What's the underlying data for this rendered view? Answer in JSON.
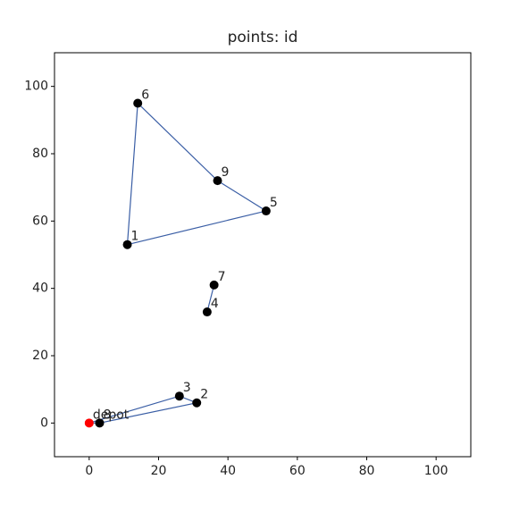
{
  "chart_data": {
    "type": "scatter",
    "title": "points: id",
    "labels": [
      "depot",
      "1",
      "2",
      "3",
      "4",
      "5",
      "6",
      "7",
      "8",
      "9"
    ],
    "x": [
      0,
      11,
      31,
      26,
      34,
      51,
      14,
      36,
      3,
      37
    ],
    "y": [
      0,
      53,
      6,
      8,
      33,
      63,
      95,
      41,
      0,
      72
    ],
    "color": "#000000",
    "depot_color": "#ff0000",
    "route_color": "#3a5ea5",
    "routes": [
      [
        0,
        3,
        2,
        8,
        0
      ],
      [
        4,
        7
      ],
      [
        1,
        6,
        9,
        5,
        1
      ]
    ],
    "xlim": [
      -10,
      110
    ],
    "ylim": [
      -10,
      110
    ],
    "xticks": [
      0,
      20,
      40,
      60,
      80,
      100
    ],
    "yticks": [
      0,
      20,
      40,
      60,
      80,
      100
    ]
  }
}
